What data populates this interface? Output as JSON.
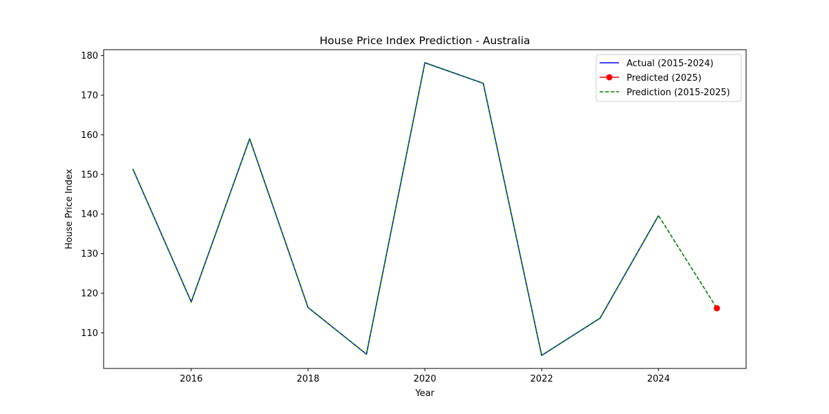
{
  "chart_data": {
    "type": "line",
    "title": "House Price Index Prediction - Australia",
    "xlabel": "Year",
    "ylabel": "House Price Index",
    "xlim": [
      2014.5,
      2025.5
    ],
    "ylim": [
      101.0,
      181.5
    ],
    "x_ticks": [
      2016,
      2018,
      2020,
      2022,
      2024
    ],
    "y_ticks": [
      110,
      120,
      130,
      140,
      150,
      160,
      170,
      180
    ],
    "grid": false,
    "legend_position": "top-right",
    "series": [
      {
        "name": "Actual (2015-2024)",
        "color": "#0000ff",
        "style": "solid",
        "x": [
          2015,
          2016,
          2017,
          2018,
          2019,
          2020,
          2021,
          2022,
          2023,
          2024
        ],
        "y": [
          151.4,
          117.8,
          159.0,
          116.4,
          104.6,
          178.2,
          173.0,
          104.3,
          113.7,
          139.6
        ]
      },
      {
        "name": "Predicted (2025)",
        "color": "#ff0000",
        "style": "marker",
        "x": [
          2025
        ],
        "y": [
          116.2
        ]
      },
      {
        "name": "Prediction (2015-2025)",
        "color": "#008000",
        "style": "dashed",
        "x": [
          2015,
          2016,
          2017,
          2018,
          2019,
          2020,
          2021,
          2022,
          2023,
          2024,
          2025
        ],
        "y": [
          151.4,
          117.8,
          159.0,
          116.4,
          104.6,
          178.2,
          173.0,
          104.3,
          113.7,
          139.6,
          116.2
        ]
      }
    ]
  }
}
